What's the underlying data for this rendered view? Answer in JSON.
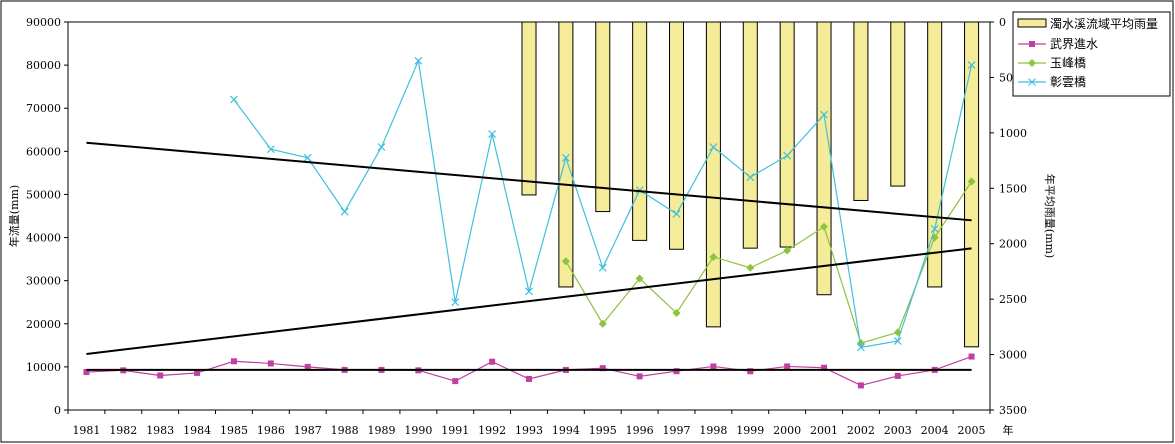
{
  "chart_data": {
    "type": "bar+line",
    "title": "",
    "xlabel": "年",
    "ylabel_left": "年流量(mm)",
    "ylabel_right": "年平均雨量(mm)",
    "categories": [
      "1981",
      "1982",
      "1983",
      "1984",
      "1985",
      "1986",
      "1987",
      "1988",
      "1989",
      "1990",
      "1991",
      "1992",
      "1993",
      "1994",
      "1995",
      "1996",
      "1997",
      "1998",
      "1999",
      "2000",
      "2001",
      "2002",
      "2003",
      "2004",
      "2005"
    ],
    "y_left_ticks": [
      "0",
      "10000",
      "20000",
      "30000",
      "40000",
      "50000",
      "60000",
      "70000",
      "80000",
      "90000"
    ],
    "y_right_ticks": [
      "0",
      "500",
      "1000",
      "1500",
      "2000",
      "2500",
      "3000",
      "3500"
    ],
    "ylim_left": [
      0,
      90000
    ],
    "ylim_right_inverted": [
      0,
      3500
    ],
    "grid": false,
    "legend_position": "top-right",
    "rainfall": {
      "name": "濁水溪流域平均雨量",
      "axis": "right",
      "color": "#f5ec9a",
      "values": [
        null,
        null,
        null,
        null,
        null,
        null,
        null,
        null,
        null,
        null,
        null,
        null,
        1560,
        2390,
        1710,
        1970,
        2050,
        2750,
        2040,
        2030,
        2460,
        1610,
        1480,
        2390,
        2930
      ]
    },
    "series": [
      {
        "name": "武界進水",
        "axis": "left",
        "color": "#c03fa0",
        "marker": "square",
        "values": [
          8800,
          9200,
          8000,
          8600,
          11300,
          10800,
          10000,
          9300,
          9300,
          9200,
          6700,
          11200,
          7200,
          9300,
          9700,
          7800,
          9000,
          10100,
          9000,
          10100,
          9800,
          5700,
          7900,
          9300,
          12400
        ]
      },
      {
        "name": "玉峰橋",
        "axis": "left",
        "color": "#8cc43c",
        "marker": "diamond",
        "values": [
          null,
          null,
          null,
          null,
          null,
          null,
          null,
          null,
          null,
          null,
          null,
          null,
          null,
          34500,
          20000,
          30500,
          22500,
          35500,
          33000,
          37000,
          42500,
          15500,
          18000,
          40000,
          53000
        ]
      },
      {
        "name": "彰雲橋",
        "axis": "left",
        "color": "#3fc0dc",
        "marker": "x",
        "values": [
          null,
          null,
          null,
          null,
          72000,
          60500,
          58500,
          46000,
          61000,
          81000,
          25000,
          64000,
          27500,
          58500,
          33000,
          51000,
          45500,
          61000,
          54000,
          59000,
          68500,
          14500,
          16000,
          42000,
          80000
        ]
      }
    ],
    "trendlines": [
      {
        "x": [
          "1981",
          "2005"
        ],
        "values": [
          62000,
          44000
        ]
      },
      {
        "x": [
          "1981",
          "2005"
        ],
        "values": [
          13000,
          37500
        ]
      },
      {
        "x": [
          "1981",
          "2005"
        ],
        "values": [
          9300,
          9300
        ]
      }
    ]
  }
}
